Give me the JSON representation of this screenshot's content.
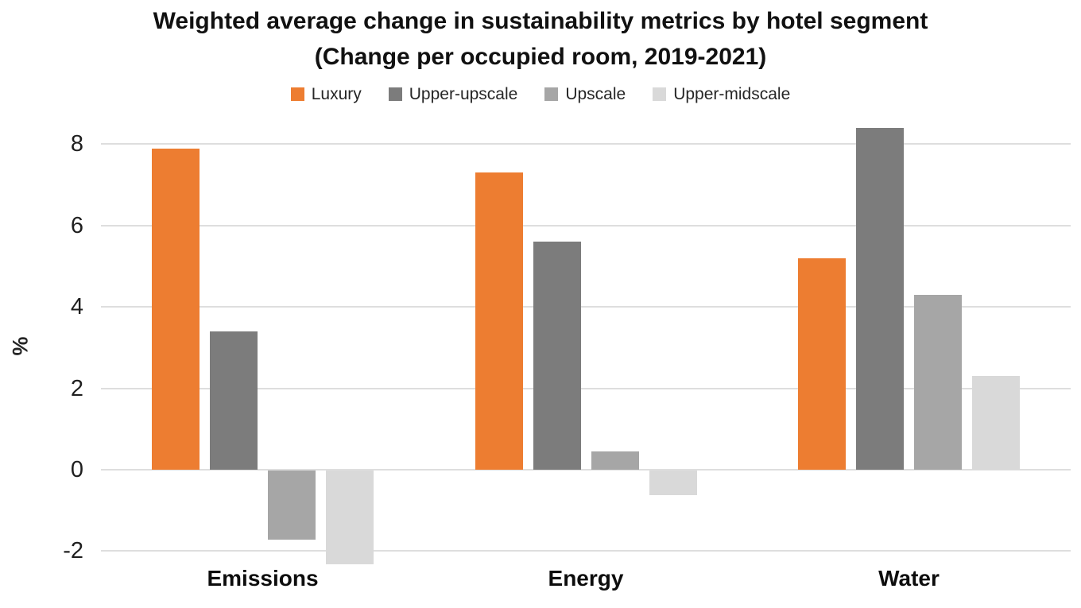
{
  "chart_data": {
    "type": "bar",
    "title": "Weighted average change in sustainability metrics by hotel segment (Change per occupied room, 2019-2021)",
    "categories": [
      "Emissions",
      "Energy",
      "Water"
    ],
    "series": [
      {
        "name": "Luxury",
        "color": "#ED7D31",
        "values": [
          7.9,
          7.3,
          5.2
        ]
      },
      {
        "name": "Upper-upscale",
        "color": "#7C7C7C",
        "values": [
          3.4,
          5.6,
          8.4
        ]
      },
      {
        "name": "Upscale",
        "color": "#A6A6A6",
        "values": [
          -1.7,
          0.45,
          4.3
        ]
      },
      {
        "name": "Upper-midscale",
        "color": "#D9D9D9",
        "values": [
          -2.3,
          -0.6,
          2.3
        ]
      }
    ],
    "xlabel": "",
    "ylabel": "%",
    "yticks": [
      8,
      6,
      4,
      2,
      0,
      -2
    ],
    "ylim": [
      -3,
      9
    ],
    "grid": true,
    "gridline_color": "#DEDEDE",
    "background_color": "#FFFFFF",
    "legend_position": "top"
  }
}
